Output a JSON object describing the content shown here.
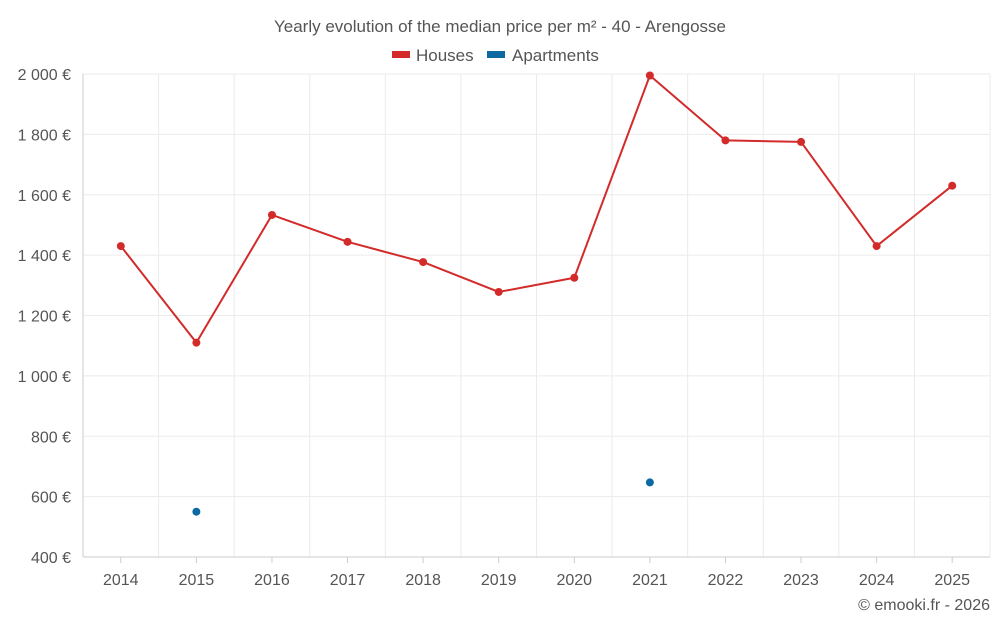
{
  "chart_data": {
    "type": "line",
    "title": "Yearly evolution of the median price per m² - 40 - Arengosse",
    "categories": [
      "2014",
      "2015",
      "2016",
      "2017",
      "2018",
      "2019",
      "2020",
      "2021",
      "2022",
      "2023",
      "2024",
      "2025"
    ],
    "series": [
      {
        "name": "Houses",
        "color": "#d32a2a",
        "values": [
          1430,
          1110,
          1533,
          1444,
          1377,
          1278,
          1325,
          1995,
          1780,
          1775,
          1430,
          1630
        ]
      },
      {
        "name": "Apartments",
        "color": "#0b6aa2",
        "values": [
          null,
          550,
          null,
          null,
          null,
          null,
          null,
          647,
          null,
          null,
          null,
          null
        ]
      }
    ],
    "ylim": [
      400,
      2000
    ],
    "yticks": [
      400,
      600,
      800,
      1000,
      1200,
      1400,
      1600,
      1800,
      2000
    ],
    "ytick_labels": [
      "400 €",
      "600 €",
      "800 €",
      "1 000 €",
      "1 200 €",
      "1 400 €",
      "1 600 €",
      "1 800 €",
      "2 000 €"
    ],
    "xlabel": "",
    "ylabel": "",
    "grid": true,
    "legend_position": "top-center"
  },
  "footer": {
    "copyright": "© emooki.fr - 2026"
  }
}
